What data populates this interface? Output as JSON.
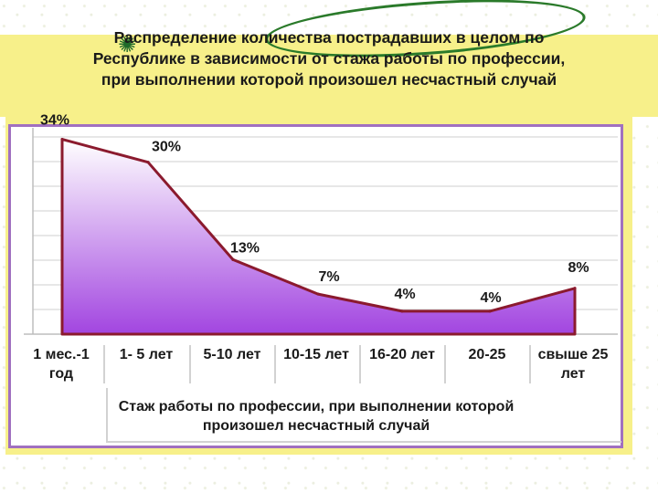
{
  "slide": {
    "title_lines": [
      "Распределение количества  пострадавших в целом по",
      "Республике в зависимости от стажа работы по профессии,",
      "при выполнении которой произошел несчастный случай"
    ]
  },
  "chart_data": {
    "type": "area",
    "title": "",
    "categories": [
      "1 мес.-1 год",
      "1- 5 лет",
      "5-10 лет",
      "10-15 лет",
      "16-20 лет",
      "20-25",
      "свыше 25 лет"
    ],
    "category_label_lines": [
      [
        "1 мес.-1",
        "год"
      ],
      [
        "1- 5 лет"
      ],
      [
        "5-10 лет"
      ],
      [
        "10-15 лет"
      ],
      [
        "16-20 лет"
      ],
      [
        "20-25"
      ],
      [
        "свыше 25",
        "лет"
      ]
    ],
    "values": [
      34,
      30,
      13,
      7,
      4,
      4,
      8
    ],
    "data_labels": [
      "34%",
      "30%",
      "13%",
      "7%",
      "4%",
      "4%",
      "8%"
    ],
    "xlabel_lines": [
      "Стаж работы по профессии, при выполнении которой",
      "произошел несчастный случай"
    ],
    "ylabel": "",
    "ylim": [
      0,
      36
    ],
    "grid": true,
    "legend": "none",
    "colors": {
      "fill_top": "#ffffff",
      "fill_bottom": "#a245e0",
      "line": "#8b1a2e",
      "grid": "#cfcfcf",
      "frame": "#a070c0",
      "panel": "#f7f08a"
    }
  }
}
